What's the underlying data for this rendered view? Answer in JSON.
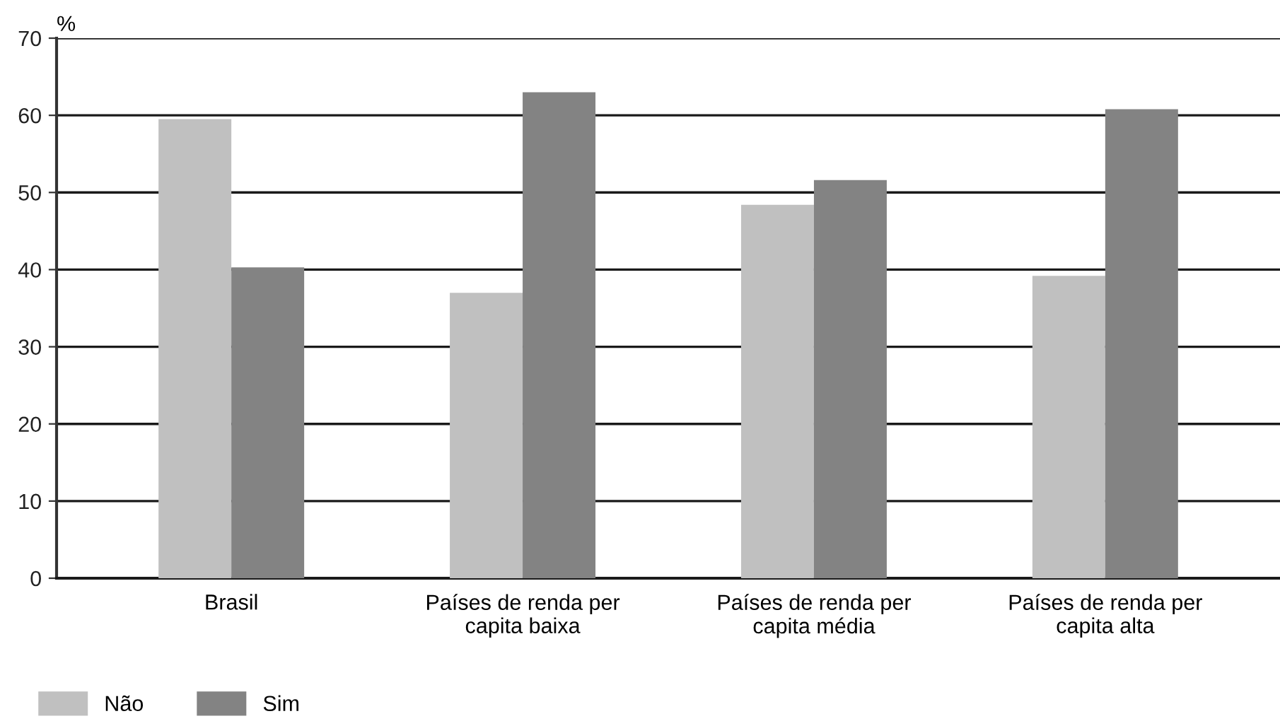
{
  "chart_data": {
    "type": "bar",
    "ylabel": "%",
    "categories": [
      "Brasil",
      "Países de renda per\ncapita baixa",
      "Países de renda per\ncapita média",
      "Países de renda per\ncapita alta"
    ],
    "series": [
      {
        "name": "Não",
        "color": "#c0c0c0",
        "values": [
          59.5,
          37.0,
          48.4,
          39.2
        ]
      },
      {
        "name": "Sim",
        "color": "#838383",
        "values": [
          40.3,
          63.0,
          51.6,
          60.8
        ]
      }
    ],
    "ylim": [
      0,
      70
    ],
    "yticks": [
      0,
      10,
      20,
      30,
      40,
      50,
      60,
      70
    ],
    "grid": "y",
    "legend": "bottom left"
  }
}
